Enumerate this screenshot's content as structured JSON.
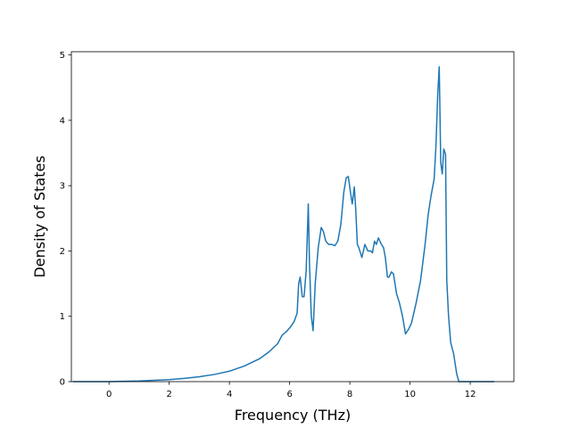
{
  "chart_data": {
    "type": "line",
    "title": "",
    "xlabel": "Frequency (THz)",
    "ylabel": "Density of States",
    "xlim": [
      -1.25,
      13.45
    ],
    "ylim": [
      0,
      5.05
    ],
    "xticks": [
      0,
      2,
      4,
      6,
      8,
      10,
      12
    ],
    "yticks": [
      0,
      1,
      2,
      3,
      4,
      5
    ],
    "grid": false,
    "line_color": "#1f77b4",
    "series": [
      {
        "x": [
          -1.2,
          -0.5,
          0,
          0.5,
          1,
          1.5,
          2,
          2.5,
          3,
          3.5,
          4,
          4.5,
          5,
          5.3,
          5.6,
          5.75,
          5.9,
          6.05,
          6.15,
          6.25,
          6.3,
          6.35,
          6.42,
          6.48,
          6.55,
          6.62,
          6.66,
          6.72,
          6.78,
          6.85,
          6.95,
          7.05,
          7.12,
          7.2,
          7.3,
          7.4,
          7.5,
          7.6,
          7.7,
          7.8,
          7.88,
          7.95,
          8.02,
          8.08,
          8.15,
          8.2,
          8.25,
          8.3,
          8.4,
          8.5,
          8.6,
          8.7,
          8.75,
          8.82,
          8.88,
          8.95,
          9.05,
          9.12,
          9.18,
          9.25,
          9.3,
          9.38,
          9.45,
          9.55,
          9.65,
          9.75,
          9.85,
          9.95,
          10.05,
          10.2,
          10.35,
          10.5,
          10.6,
          10.7,
          10.8,
          10.86,
          10.92,
          10.97,
          11.02,
          11.07,
          11.12,
          11.18,
          11.22,
          11.28,
          11.35,
          11.45,
          11.55,
          11.62,
          12.0,
          12.8
        ],
        "y": [
          0,
          0,
          0,
          0.005,
          0.01,
          0.02,
          0.03,
          0.05,
          0.075,
          0.11,
          0.16,
          0.24,
          0.35,
          0.45,
          0.58,
          0.71,
          0.77,
          0.85,
          0.92,
          1.05,
          1.5,
          1.6,
          1.3,
          1.3,
          1.7,
          2.72,
          1.8,
          1.0,
          0.78,
          1.5,
          2.05,
          2.36,
          2.3,
          2.15,
          2.1,
          2.1,
          2.08,
          2.15,
          2.4,
          2.9,
          3.12,
          3.14,
          2.9,
          2.72,
          2.98,
          2.6,
          2.1,
          2.05,
          1.9,
          2.1,
          2.0,
          2.0,
          1.97,
          2.15,
          2.1,
          2.2,
          2.1,
          2.05,
          1.9,
          1.6,
          1.6,
          1.68,
          1.65,
          1.35,
          1.2,
          1.0,
          0.73,
          0.8,
          0.9,
          1.2,
          1.55,
          2.1,
          2.55,
          2.85,
          3.1,
          3.6,
          4.4,
          4.82,
          3.35,
          3.18,
          3.56,
          3.48,
          1.55,
          1.0,
          0.6,
          0.42,
          0.12,
          0,
          0,
          0
        ]
      }
    ]
  }
}
